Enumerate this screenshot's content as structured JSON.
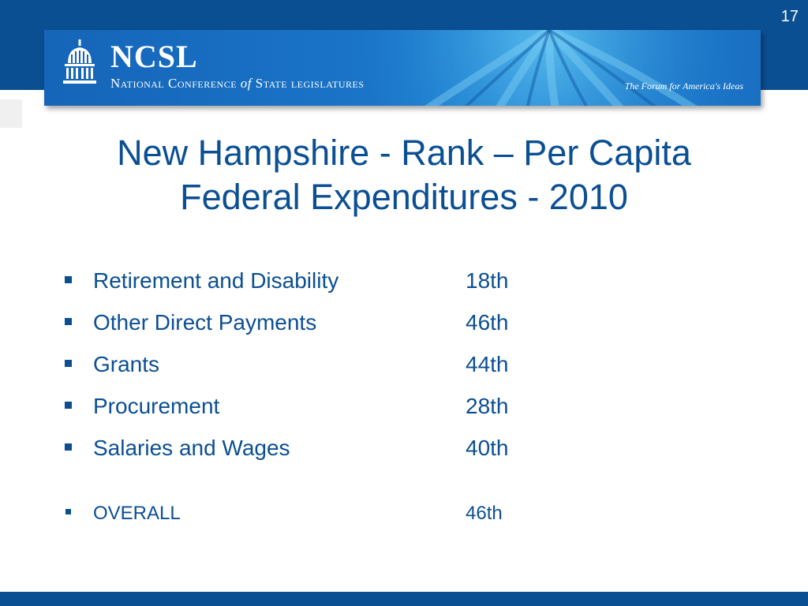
{
  "slide": {
    "number": "17",
    "title_line1": "New Hampshire - Rank – Per Capita",
    "title_line2": "Federal Expenditures - 2010"
  },
  "banner": {
    "logo_title": "NCSL",
    "logo_subtitle_part1": "National Conference",
    "logo_subtitle_of": "of",
    "logo_subtitle_part2": "State legislatures",
    "tagline": "The Forum for America's Ideas",
    "icon": "capitol-dome-icon"
  },
  "rankings": [
    {
      "label": "Retirement and Disability",
      "value": "18th"
    },
    {
      "label": "Other Direct Payments",
      "value": "46th"
    },
    {
      "label": "Grants",
      "value": "44th"
    },
    {
      "label": "Procurement",
      "value": "28th"
    },
    {
      "label": "Salaries and Wages",
      "value": "40th"
    }
  ],
  "overall": {
    "label": "OVERALL",
    "value": "46th"
  },
  "colors": {
    "primary_blue": "#0b4f93",
    "banner_blue": "#1a74c8",
    "background": "#ffffff"
  }
}
